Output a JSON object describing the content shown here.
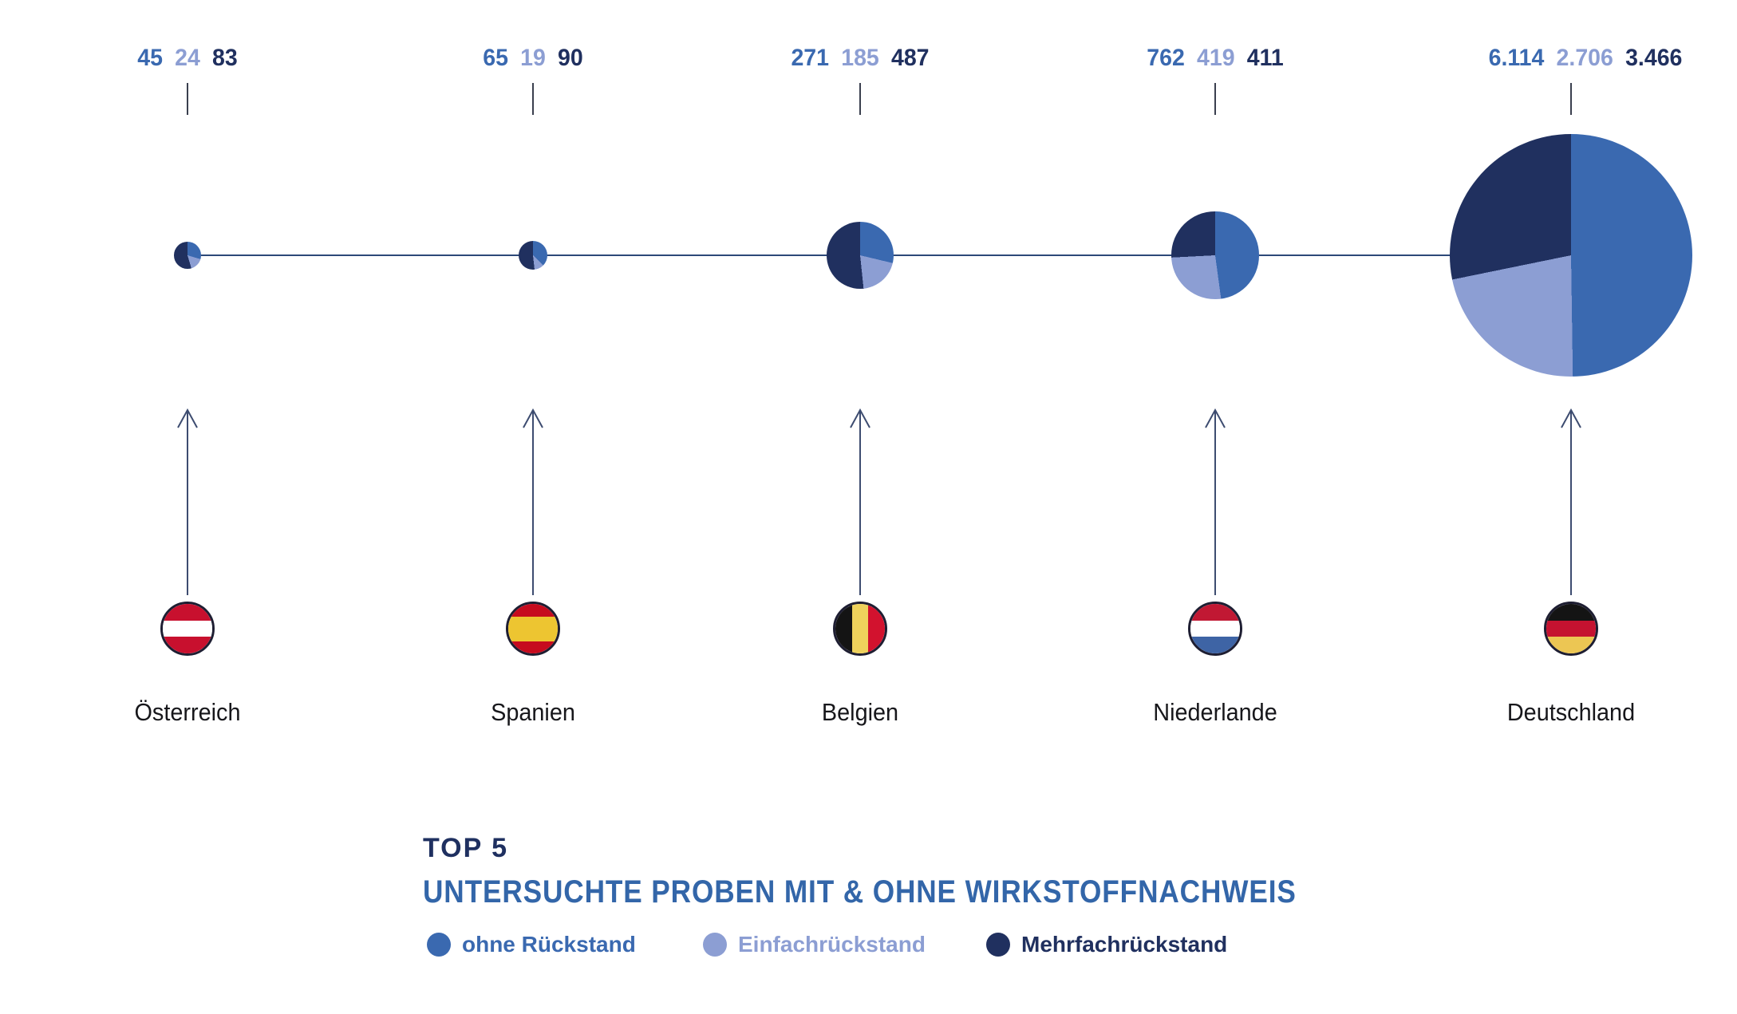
{
  "title": {
    "top": "TOP 5",
    "sub": "UNTERSUCHTE PROBEN MIT & OHNE WIRKSTOFFNACHWEIS"
  },
  "palette": {
    "ohne": "#3A69B0",
    "einfach": "#8C9ED3",
    "mehrfach": "#20305F",
    "line": "#2C4878",
    "tick": "#3A3F4E",
    "arrow": "#3D4C70",
    "title_top": "#1F3060",
    "title_sub": "#3366A9",
    "country_label": "#17171b",
    "flag_border": "#1E1E32"
  },
  "legend": [
    {
      "label": "ohne Rückstand",
      "series": "ohne"
    },
    {
      "label": "Einfachrückstand",
      "series": "einfach"
    },
    {
      "label": "Mehrfachrückstand",
      "series": "mehrfach"
    }
  ],
  "countries": [
    {
      "name": "Österreich",
      "slug": "oesterreich",
      "totals_display": [
        "45",
        "24",
        "83"
      ],
      "values": {
        "ohne": 45,
        "einfach": 24,
        "mehrfach": 83
      },
      "flag": {
        "orientation": "horizontal",
        "stripes": [
          [
            "#C8102E",
            1
          ],
          [
            "#FFFFFF",
            1
          ],
          [
            "#C8102E",
            1
          ]
        ]
      }
    },
    {
      "name": "Spanien",
      "slug": "spanien",
      "totals_display": [
        "65",
        "19",
        "90"
      ],
      "values": {
        "ohne": 65,
        "einfach": 19,
        "mehrfach": 90
      },
      "flag": {
        "orientation": "horizontal",
        "stripes": [
          [
            "#C60B1E",
            1
          ],
          [
            "#EDC531",
            2
          ],
          [
            "#C60B1E",
            1
          ]
        ]
      }
    },
    {
      "name": "Belgien",
      "slug": "belgien",
      "totals_display": [
        "271",
        "185",
        "487"
      ],
      "values": {
        "ohne": 271,
        "einfach": 185,
        "mehrfach": 487
      },
      "flag": {
        "orientation": "vertical",
        "stripes": [
          [
            "#141414",
            1
          ],
          [
            "#EFD25C",
            1
          ],
          [
            "#D2122E",
            1
          ]
        ]
      }
    },
    {
      "name": "Niederlande",
      "slug": "niederlande",
      "totals_display": [
        "762",
        "419",
        "411"
      ],
      "values": {
        "ohne": 762,
        "einfach": 419,
        "mehrfach": 411
      },
      "flag": {
        "orientation": "horizontal",
        "stripes": [
          [
            "#C11833",
            1
          ],
          [
            "#FFFFFF",
            1
          ],
          [
            "#3E64A5",
            1
          ]
        ]
      }
    },
    {
      "name": "Deutschland",
      "slug": "deutschland",
      "totals_display": [
        "6.114",
        "2.706",
        "3.466"
      ],
      "values": {
        "ohne": 6114,
        "einfach": 2706,
        "mehrfach": 3466
      },
      "flag": {
        "orientation": "horizontal",
        "stripes": [
          [
            "#141414",
            1
          ],
          [
            "#C51230",
            1
          ],
          [
            "#ECC653",
            1
          ]
        ]
      }
    }
  ],
  "chart_data": {
    "type": "pie",
    "title": "TOP 5 — UNTERSUCHTE PROBEN MIT & OHNE WIRKSTOFFNACHWEIS",
    "categories": [
      "Österreich",
      "Spanien",
      "Belgien",
      "Niederlande",
      "Deutschland"
    ],
    "series": [
      {
        "name": "ohne Rückstand",
        "color": "#3A69B0",
        "values": [
          45,
          65,
          271,
          762,
          6114
        ]
      },
      {
        "name": "Einfachrückstand",
        "color": "#8C9ED3",
        "values": [
          24,
          19,
          185,
          419,
          2706
        ]
      },
      {
        "name": "Mehrfachrückstand",
        "color": "#20305F",
        "values": [
          83,
          90,
          487,
          411,
          3466
        ]
      }
    ],
    "totals": [
      152,
      174,
      943,
      1592,
      12286
    ],
    "layout_hint": "five pie charts on one horizontal axis, pie area proportional to country total; slices drawn clockwise from 12 o'clock in order: ohne Rückstand, Einfachrückstand, Mehrfachrückstand; country flags below connected by upward arrows",
    "legend_position": "bottom"
  }
}
